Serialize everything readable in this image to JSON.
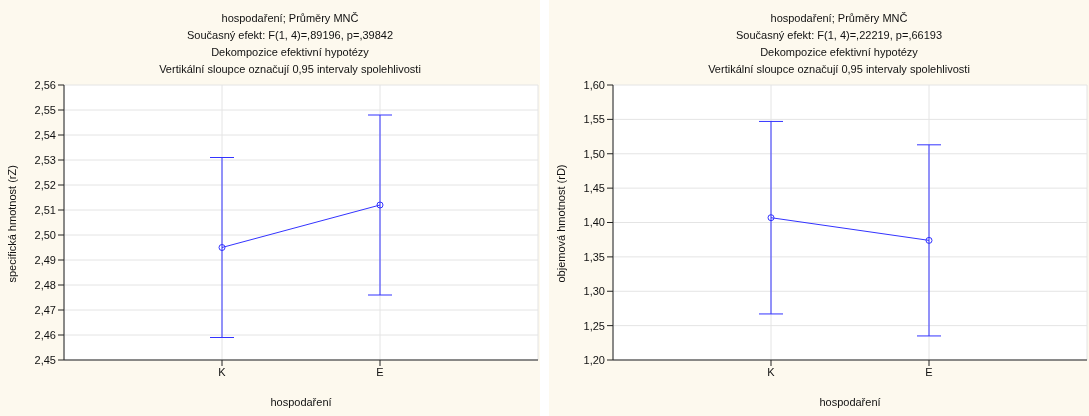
{
  "chart_data": [
    {
      "type": "line",
      "title": "hospodaření; Průměry MNČ",
      "subtitle": "Současný efekt: F(1, 4)=,89196, p=,39842",
      "annotations": [
        "Dekompozice efektivní hypotézy",
        "Vertikální sloupce označují 0,95 intervaly spolehlivosti"
      ],
      "xlabel": "hospodaření",
      "ylabel": "specifická hmotnost (rZ)",
      "categories": [
        "K",
        "E"
      ],
      "series": [
        {
          "color": "#3333ff",
          "values": [
            2.495,
            2.512
          ],
          "errors": [
            0.036,
            0.036
          ]
        }
      ],
      "ylim": [
        2.45,
        2.56
      ],
      "yticks": [
        {
          "value": 2.45,
          "label": "2,45"
        },
        {
          "value": 2.46,
          "label": "2,46"
        },
        {
          "value": 2.47,
          "label": "2,47"
        },
        {
          "value": 2.48,
          "label": "2,48"
        },
        {
          "value": 2.49,
          "label": "2,49"
        },
        {
          "value": 2.5,
          "label": "2,50"
        },
        {
          "value": 2.51,
          "label": "2,51"
        },
        {
          "value": 2.52,
          "label": "2,52"
        },
        {
          "value": 2.53,
          "label": "2,53"
        },
        {
          "value": 2.54,
          "label": "2,54"
        },
        {
          "value": 2.55,
          "label": "2,55"
        },
        {
          "value": 2.56,
          "label": "2,56"
        }
      ],
      "grid": true,
      "marker": "circle"
    },
    {
      "type": "line",
      "title": "hospodaření; Průměry MNČ",
      "subtitle": "Současný efekt: F(1, 4)=,22219, p=,66193",
      "annotations": [
        "Dekompozice efektivní hypotézy",
        "Vertikální sloupce označují 0,95 intervaly spolehlivosti"
      ],
      "xlabel": "hospodaření",
      "ylabel": "objemová hmotnost (rD)",
      "categories": [
        "K",
        "E"
      ],
      "series": [
        {
          "color": "#3333ff",
          "values": [
            1.407,
            1.374
          ],
          "errors": [
            0.14,
            0.139
          ]
        }
      ],
      "ylim": [
        1.2,
        1.6
      ],
      "yticks": [
        {
          "value": 1.2,
          "label": "1,20"
        },
        {
          "value": 1.25,
          "label": "1,25"
        },
        {
          "value": 1.3,
          "label": "1,30"
        },
        {
          "value": 1.35,
          "label": "1,35"
        },
        {
          "value": 1.4,
          "label": "1,40"
        },
        {
          "value": 1.45,
          "label": "1,45"
        },
        {
          "value": 1.5,
          "label": "1,50"
        },
        {
          "value": 1.55,
          "label": "1,55"
        },
        {
          "value": 1.6,
          "label": "1,60"
        }
      ],
      "grid": true,
      "marker": "circle"
    }
  ]
}
